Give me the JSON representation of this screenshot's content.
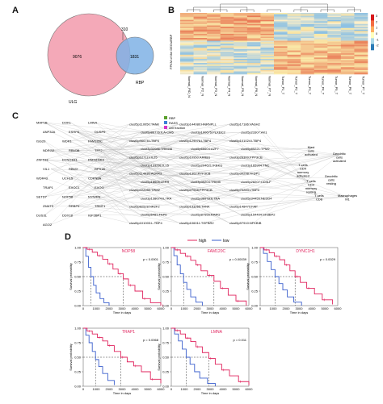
{
  "panels": {
    "A": "A",
    "B": "B",
    "C": "C",
    "D": "D"
  },
  "venn": {
    "left_label": "ULG",
    "right_label": "RBP",
    "left_only": "9076",
    "overlap": "310",
    "right_only": "1831",
    "left_color": "#f4a9b8",
    "right_color": "#7fb2e5"
  },
  "heatmap": {
    "ylabel": "FPKM of the DEGs/RBP",
    "legend_ticks": [
      "3",
      "2",
      "1",
      "0",
      "-1",
      "-2"
    ],
    "columns": [
      "Normal_PID_N",
      "Normal_P2_N",
      "Normal_P3_N",
      "Normal_P4_N",
      "Normal_P5_N",
      "Normal_P6_N",
      "Normal_P7_N",
      "Tumor_P1_T",
      "Tumor_P2_T",
      "Tumor_P3_T",
      "Tumor_P4_T",
      "Tumor_P5_T",
      "Tumor_P6_T",
      "Tumor_P7_T"
    ]
  },
  "network": {
    "legend": [
      {
        "label": "RBP",
        "color": "#5aa02c"
      },
      {
        "label": "RASS",
        "color": "#3b7fd6"
      },
      {
        "label": "cell fraction",
        "color": "#d632c8"
      }
    ],
    "rbp_genes": [
      "MAP1B",
      "DOK1",
      "LMNA",
      "ANP32A",
      "ESRP2",
      "DUSP9",
      "ISG20",
      "WDR1",
      "FAM120C",
      "NDRG2",
      "RBM38",
      "TFF2",
      "ZNF513",
      "DYNC1H1",
      "PAFAH1B3",
      "VIL1",
      "RBMX",
      "RPS18",
      "WDR43",
      "UCHL5",
      "CDKN2A",
      "TRAP1",
      "EXOC1",
      "EXOG",
      "SETD7",
      "NOP58",
      "NYNRIN",
      "ZMAT3",
      "RRBP1",
      "TRMT1",
      "DUS3L",
      "DDX18",
      "IGF2BP1",
      "AGO2"
    ],
    "rass_events": [
      "clust5p110050:TANK",
      "clust3p144080:HNRNPLL",
      "clust5p17186:VASH2",
      "clust5p86776:ILA-CM5",
      "clust3p100675:PLXDC2",
      "clust5p23307:AK1",
      "clust5p96678:LTBP4",
      "clust5p129076:LTBP4",
      "clust5p101024:LTBP4",
      "clust3p32086:TRIM46",
      "clust5p66604:AZF7",
      "clust5p85221:TPM2",
      "clust5p127119:IL25",
      "clust5p10950:ARRB1",
      "clust3p26300:PPP3CB",
      "clust3p133291:IL15",
      "clust5p204621:IKBKG",
      "clust3p165904:TNC",
      "clust5p114936:ACKR3",
      "clust5p1302:PPP3CB",
      "clust5p30298:TFDP1",
      "clust5p18605:LEPR",
      "clust3p35204:TRIM5",
      "clust5p28207:CD4LF",
      "clust5p222050:TPM2",
      "clust5p27948:PPP3CB",
      "clust5p70283:LTBP3",
      "clust3p138074:IL7RA",
      "clust5p38978:IL7RA",
      "clust5p34455:NEDD4",
      "clust5p82528:NR2F2",
      "clust5p133265:TANK",
      "clust5p148470:FAP",
      "clust5p6481:FAP6",
      "clust5p87555:RARG",
      "clust5p154404:SH3BP2",
      "clust5p101003:L-TBP4",
      "clust5p106011:TGFBR2",
      "clust5p97910:NFKBIB"
    ],
    "cell_fractions": [
      "Mast cells activated",
      "Dendritic cells activated",
      "T cells CD4 memory activated",
      "Dendritic cells resting",
      "T cells CD4 memory resting",
      "Macrophages M1",
      "T cells CD8"
    ]
  },
  "survival": {
    "legend_high": "high",
    "legend_low": "low",
    "high_color": "#e0245e",
    "low_color": "#3a5fcd",
    "xlabel": "Time in days",
    "ylabel": "Survival probability",
    "x_ticks": [
      "0",
      "1000",
      "2000",
      "3000",
      "4000",
      "5000",
      "6000"
    ],
    "y_ticks": [
      "0.00",
      "0.25",
      "0.50",
      "0.75",
      "1.00"
    ],
    "plots": [
      {
        "gene": "NOP58",
        "p": "p < 0.0001"
      },
      {
        "gene": "FAM120C",
        "p": "p = 0.00039"
      },
      {
        "gene": "DYNC1H1",
        "p": "p = 0.0029"
      },
      {
        "gene": "TRAP1",
        "p": "p = 0.0068"
      },
      {
        "gene": "LMNA",
        "p": "p = 0.011"
      }
    ]
  }
}
